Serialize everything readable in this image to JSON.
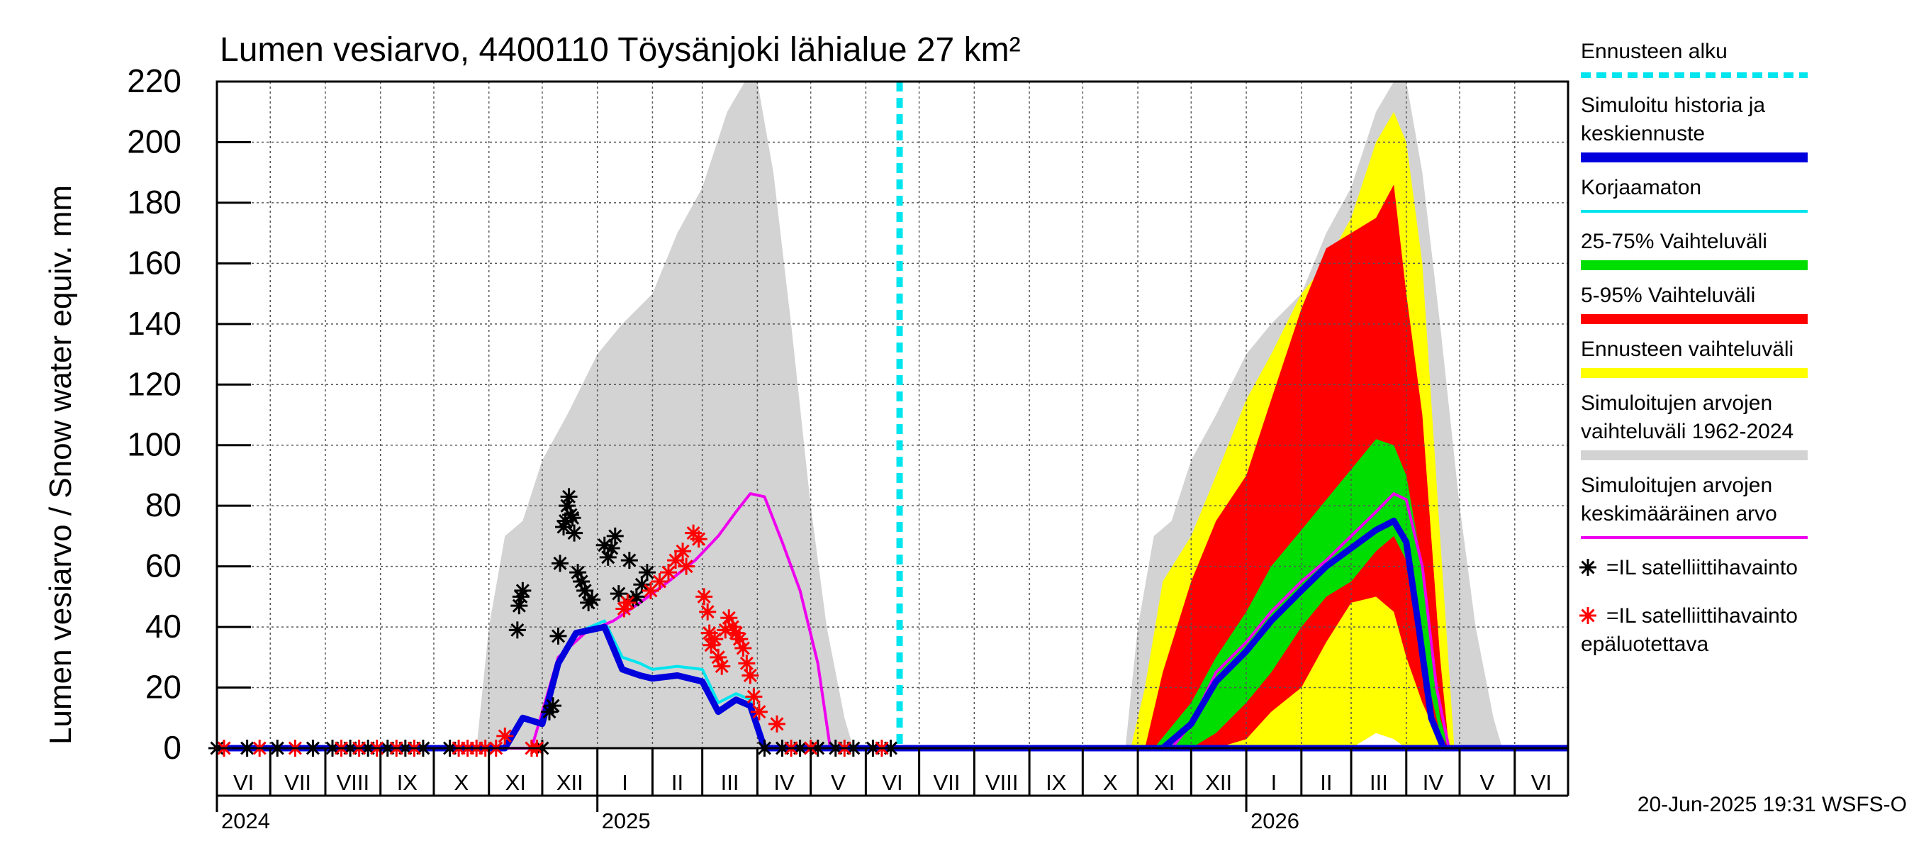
{
  "chart_data": {
    "type": "area",
    "title": "Lumen vesiarvo, 4400110 Töysänjoki lähialue 27 km²",
    "ylabel": "Lumen vesiarvo / Snow water equiv.    mm",
    "ylim": [
      0,
      220
    ],
    "yticks": [
      0,
      20,
      40,
      60,
      80,
      100,
      120,
      140,
      160,
      180,
      200,
      220
    ],
    "x_range": [
      "2024-06-01",
      "2026-07-01"
    ],
    "forecast_start": "2025-06-20",
    "month_labels": [
      {
        "label": "VI",
        "start": "2024-06-01",
        "end": "2024-07-01"
      },
      {
        "label": "VII",
        "start": "2024-07-01",
        "end": "2024-08-01"
      },
      {
        "label": "VIII",
        "start": "2024-08-01",
        "end": "2024-09-01"
      },
      {
        "label": "IX",
        "start": "2024-09-01",
        "end": "2024-10-01"
      },
      {
        "label": "X",
        "start": "2024-10-01",
        "end": "2024-11-01"
      },
      {
        "label": "XI",
        "start": "2024-11-01",
        "end": "2024-12-01"
      },
      {
        "label": "XII",
        "start": "2024-12-01",
        "end": "2025-01-01"
      },
      {
        "label": "I",
        "start": "2025-01-01",
        "end": "2025-02-01"
      },
      {
        "label": "II",
        "start": "2025-02-01",
        "end": "2025-03-01"
      },
      {
        "label": "III",
        "start": "2025-03-01",
        "end": "2025-04-01"
      },
      {
        "label": "IV",
        "start": "2025-04-01",
        "end": "2025-05-01"
      },
      {
        "label": "V",
        "start": "2025-05-01",
        "end": "2025-06-01"
      },
      {
        "label": "VI",
        "start": "2025-06-01",
        "end": "2025-07-01"
      },
      {
        "label": "VII",
        "start": "2025-07-01",
        "end": "2025-08-01"
      },
      {
        "label": "VIII",
        "start": "2025-08-01",
        "end": "2025-09-01"
      },
      {
        "label": "IX",
        "start": "2025-09-01",
        "end": "2025-10-01"
      },
      {
        "label": "X",
        "start": "2025-10-01",
        "end": "2025-11-01"
      },
      {
        "label": "XI",
        "start": "2025-11-01",
        "end": "2025-12-01"
      },
      {
        "label": "XII",
        "start": "2025-12-01",
        "end": "2026-01-01"
      },
      {
        "label": "I",
        "start": "2026-01-01",
        "end": "2026-02-01"
      },
      {
        "label": "II",
        "start": "2026-02-01",
        "end": "2026-03-01"
      },
      {
        "label": "III",
        "start": "2026-03-01",
        "end": "2026-04-01"
      },
      {
        "label": "IV",
        "start": "2026-04-01",
        "end": "2026-05-01"
      },
      {
        "label": "V",
        "start": "2026-05-01",
        "end": "2026-06-01"
      },
      {
        "label": "VI",
        "start": "2026-06-01",
        "end": "2026-07-01"
      }
    ],
    "year_labels": [
      {
        "label": "2024",
        "date": "2024-06-01"
      },
      {
        "label": "2025",
        "date": "2025-01-01"
      },
      {
        "label": "2026",
        "date": "2026-01-01"
      }
    ],
    "legend": [
      {
        "label": "Ennusteen alku",
        "color": "#00e5ee",
        "style": "dashed"
      },
      {
        "label": "Simuloitu historia ja\nkeskiennuste",
        "color": "#0000dd",
        "style": "thick"
      },
      {
        "label": "Korjaamaton",
        "color": "#00e5ee",
        "style": "line"
      },
      {
        "label": "25-75% Vaihteluväli",
        "color": "#00dd00",
        "style": "band"
      },
      {
        "label": "5-95% Vaihteluväli",
        "color": "#ff0000",
        "style": "band"
      },
      {
        "label": "Ennusteen vaihteluväli",
        "color": "#ffff00",
        "style": "band"
      },
      {
        "label": "Simuloitujen arvojen\nvaihteluväli 1962-2024",
        "color": "#d3d3d3",
        "style": "band"
      },
      {
        "label": "Simuloitujen arvojen\nkeskimääräinen arvo",
        "color": "#ee00ee",
        "style": "line"
      },
      {
        "label": "=IL satelliittihavainto",
        "color": "#000000",
        "style": "marker"
      },
      {
        "label": "=IL satelliittihavainto\nepäluotettava",
        "color": "#ff0000",
        "style": "marker"
      }
    ],
    "footer": "20-Jun-2025 19:31 WSFS-O",
    "series": [
      {
        "name": "hist_range",
        "kind": "band",
        "color": "#d3d3d3",
        "x": [
          "2024-10-25",
          "2024-11-01",
          "2024-11-10",
          "2024-11-20",
          "2024-12-01",
          "2024-12-15",
          "2025-01-01",
          "2025-01-15",
          "2025-02-01",
          "2025-02-15",
          "2025-03-01",
          "2025-03-15",
          "2025-03-25",
          "2025-04-01",
          "2025-04-10",
          "2025-04-20",
          "2025-05-01",
          "2025-05-10",
          "2025-05-20",
          "2025-05-25"
        ],
        "lo": [
          0,
          0,
          0,
          0,
          0,
          0,
          0,
          0,
          0,
          0,
          0,
          0,
          0,
          0,
          0,
          0,
          0,
          0,
          0,
          0
        ],
        "hi": [
          0,
          40,
          70,
          75,
          95,
          110,
          130,
          140,
          150,
          170,
          185,
          210,
          220,
          220,
          190,
          140,
          80,
          40,
          10,
          0
        ]
      },
      {
        "name": "hist_range",
        "kind": "band",
        "color": "#d3d3d3",
        "x": [
          "2025-10-25",
          "2025-11-01",
          "2025-11-10",
          "2025-11-20",
          "2025-12-01",
          "2025-12-15",
          "2026-01-01",
          "2026-01-15",
          "2026-02-01",
          "2026-02-15",
          "2026-03-01",
          "2026-03-15",
          "2026-03-25",
          "2026-04-01",
          "2026-04-10",
          "2026-04-20",
          "2026-05-01",
          "2026-05-10",
          "2026-05-20",
          "2026-05-25"
        ],
        "lo": [
          0,
          0,
          0,
          0,
          0,
          0,
          0,
          0,
          0,
          0,
          0,
          5,
          8,
          5,
          2,
          0,
          0,
          0,
          0,
          0
        ],
        "hi": [
          0,
          40,
          70,
          75,
          95,
          110,
          130,
          140,
          150,
          170,
          185,
          210,
          220,
          220,
          190,
          140,
          80,
          40,
          10,
          0
        ]
      },
      {
        "name": "forecast_range",
        "kind": "band",
        "color": "#ffff00",
        "x": [
          "2025-10-28",
          "2025-11-05",
          "2025-11-15",
          "2025-12-01",
          "2025-12-15",
          "2026-01-01",
          "2026-01-15",
          "2026-02-01",
          "2026-02-15",
          "2026-03-01",
          "2026-03-15",
          "2026-03-25",
          "2026-04-01",
          "2026-04-10",
          "2026-04-20",
          "2026-04-28"
        ],
        "lo": [
          0,
          0,
          0,
          0,
          0,
          0,
          0,
          0,
          0,
          0,
          5,
          3,
          0,
          0,
          0,
          0
        ],
        "hi": [
          0,
          20,
          55,
          70,
          90,
          115,
          130,
          150,
          160,
          175,
          200,
          210,
          200,
          160,
          70,
          0
        ]
      },
      {
        "name": "p5_95",
        "kind": "band",
        "color": "#ff0000",
        "x": [
          "2025-11-05",
          "2025-11-15",
          "2025-12-01",
          "2025-12-15",
          "2026-01-01",
          "2026-01-15",
          "2026-02-01",
          "2026-02-15",
          "2026-03-01",
          "2026-03-15",
          "2026-03-25",
          "2026-04-01",
          "2026-04-10",
          "2026-04-20",
          "2026-04-25"
        ],
        "lo": [
          0,
          0,
          0,
          0,
          3,
          12,
          20,
          35,
          48,
          50,
          45,
          30,
          15,
          2,
          0
        ],
        "hi": [
          0,
          25,
          55,
          75,
          90,
          115,
          145,
          165,
          170,
          175,
          186,
          150,
          110,
          30,
          0
        ]
      },
      {
        "name": "p25_75",
        "kind": "band",
        "color": "#00dd00",
        "x": [
          "2025-11-10",
          "2025-12-01",
          "2025-12-15",
          "2026-01-01",
          "2026-01-15",
          "2026-02-01",
          "2026-02-15",
          "2026-03-01",
          "2026-03-15",
          "2026-03-25",
          "2026-04-01",
          "2026-04-10",
          "2026-04-20",
          "2026-04-25"
        ],
        "lo": [
          0,
          0,
          5,
          15,
          25,
          40,
          50,
          55,
          65,
          70,
          62,
          30,
          5,
          0
        ],
        "hi": [
          0,
          15,
          30,
          45,
          60,
          72,
          82,
          92,
          102,
          100,
          90,
          60,
          10,
          0
        ]
      },
      {
        "name": "uncorrected",
        "kind": "line",
        "color": "#00e5ee",
        "width": 4,
        "x": [
          "2024-06-01",
          "2024-11-10",
          "2024-11-20",
          "2024-12-01",
          "2024-12-10",
          "2024-12-20",
          "2025-01-05",
          "2025-01-15",
          "2025-01-25",
          "2025-02-01",
          "2025-02-15",
          "2025-03-01",
          "2025-03-10",
          "2025-03-20",
          "2025-03-28",
          "2025-04-05",
          "2025-04-15",
          "2025-06-20"
        ],
        "y": [
          0,
          0,
          10,
          8,
          28,
          38,
          42,
          30,
          28,
          26,
          27,
          26,
          15,
          18,
          16,
          0,
          0,
          0
        ]
      },
      {
        "name": "mean_history",
        "kind": "line",
        "color": "#ee00ee",
        "width": 4,
        "x": [
          "2024-06-01",
          "2024-11-25",
          "2024-12-10",
          "2024-12-25",
          "2025-01-10",
          "2025-01-25",
          "2025-02-10",
          "2025-02-25",
          "2025-03-10",
          "2025-03-20",
          "2025-03-28",
          "2025-04-05",
          "2025-04-15",
          "2025-04-25",
          "2025-05-05",
          "2025-05-12",
          "2026-07-01"
        ],
        "y": [
          0,
          0,
          30,
          38,
          42,
          48,
          55,
          62,
          70,
          78,
          84,
          83,
          68,
          52,
          28,
          0,
          0
        ]
      },
      {
        "name": "mean_forecast",
        "kind": "line",
        "color": "#ee00ee",
        "width": 4,
        "x": [
          "2025-11-20",
          "2025-12-01",
          "2025-12-15",
          "2026-01-01",
          "2026-01-15",
          "2026-02-01",
          "2026-02-15",
          "2026-03-01",
          "2026-03-15",
          "2026-03-25",
          "2026-04-01",
          "2026-04-10",
          "2026-04-18",
          "2026-04-25"
        ],
        "y": [
          0,
          8,
          25,
          35,
          45,
          55,
          62,
          70,
          78,
          84,
          82,
          60,
          20,
          0
        ]
      },
      {
        "name": "simulated",
        "kind": "line",
        "color": "#0000dd",
        "width": 9,
        "x": [
          "2024-06-01",
          "2024-11-10",
          "2024-11-20",
          "2024-12-01",
          "2024-12-10",
          "2024-12-20",
          "2025-01-05",
          "2025-01-15",
          "2025-01-25",
          "2025-02-01",
          "2025-02-15",
          "2025-03-01",
          "2025-03-10",
          "2025-03-20",
          "2025-03-28",
          "2025-04-05",
          "2025-04-15",
          "2026-07-01"
        ],
        "y": [
          0,
          0,
          10,
          8,
          28,
          38,
          40,
          26,
          24,
          23,
          24,
          22,
          12,
          16,
          14,
          0,
          0,
          0
        ]
      },
      {
        "name": "forecast_median",
        "kind": "line",
        "color": "#0000dd",
        "width": 9,
        "x": [
          "2025-11-15",
          "2025-12-01",
          "2025-12-15",
          "2026-01-01",
          "2026-01-15",
          "2026-02-01",
          "2026-02-15",
          "2026-03-01",
          "2026-03-15",
          "2026-03-25",
          "2026-04-01",
          "2026-04-08",
          "2026-04-15",
          "2026-04-22"
        ],
        "y": [
          0,
          8,
          22,
          32,
          42,
          52,
          60,
          66,
          72,
          75,
          68,
          40,
          10,
          0
        ]
      }
    ],
    "obs_good": [
      {
        "x": "2024-06-01",
        "y": 0
      },
      {
        "x": "2024-06-18",
        "y": 0
      },
      {
        "x": "2024-07-05",
        "y": 0
      },
      {
        "x": "2024-07-25",
        "y": 0
      },
      {
        "x": "2024-08-05",
        "y": 0
      },
      {
        "x": "2024-08-15",
        "y": 0
      },
      {
        "x": "2024-08-25",
        "y": 0
      },
      {
        "x": "2024-09-05",
        "y": 0
      },
      {
        "x": "2024-09-15",
        "y": 0
      },
      {
        "x": "2024-09-25",
        "y": 0
      },
      {
        "x": "2024-10-10",
        "y": 0
      },
      {
        "x": "2024-11-17",
        "y": 39
      },
      {
        "x": "2024-11-18",
        "y": 47
      },
      {
        "x": "2024-11-19",
        "y": 50
      },
      {
        "x": "2024-11-20",
        "y": 52
      },
      {
        "x": "2024-12-01",
        "y": 0
      },
      {
        "x": "2024-12-05",
        "y": 12
      },
      {
        "x": "2024-12-07",
        "y": 14
      },
      {
        "x": "2024-12-10",
        "y": 37
      },
      {
        "x": "2024-12-11",
        "y": 61
      },
      {
        "x": "2024-12-13",
        "y": 73
      },
      {
        "x": "2024-12-14",
        "y": 75
      },
      {
        "x": "2024-12-15",
        "y": 80
      },
      {
        "x": "2024-12-16",
        "y": 83
      },
      {
        "x": "2024-12-17",
        "y": 77
      },
      {
        "x": "2024-12-18",
        "y": 76
      },
      {
        "x": "2024-12-19",
        "y": 71
      },
      {
        "x": "2024-12-21",
        "y": 58
      },
      {
        "x": "2024-12-23",
        "y": 55
      },
      {
        "x": "2024-12-25",
        "y": 52
      },
      {
        "x": "2024-12-27",
        "y": 48
      },
      {
        "x": "2024-12-29",
        "y": 49
      },
      {
        "x": "2025-01-05",
        "y": 67
      },
      {
        "x": "2025-01-07",
        "y": 63
      },
      {
        "x": "2025-01-09",
        "y": 66
      },
      {
        "x": "2025-01-11",
        "y": 70
      },
      {
        "x": "2025-01-13",
        "y": 51
      },
      {
        "x": "2025-01-19",
        "y": 62
      },
      {
        "x": "2025-01-21",
        "y": 49
      },
      {
        "x": "2025-01-23",
        "y": 50
      },
      {
        "x": "2025-01-26",
        "y": 54
      },
      {
        "x": "2025-01-29",
        "y": 58
      },
      {
        "x": "2025-04-05",
        "y": 0
      },
      {
        "x": "2025-04-15",
        "y": 0
      },
      {
        "x": "2025-04-25",
        "y": 0
      },
      {
        "x": "2025-05-05",
        "y": 0
      },
      {
        "x": "2025-05-15",
        "y": 0
      },
      {
        "x": "2025-05-25",
        "y": 0
      },
      {
        "x": "2025-06-05",
        "y": 0
      },
      {
        "x": "2025-06-15",
        "y": 0
      }
    ],
    "obs_bad": [
      {
        "x": "2024-06-05",
        "y": 0
      },
      {
        "x": "2024-06-25",
        "y": 0
      },
      {
        "x": "2024-07-15",
        "y": 0
      },
      {
        "x": "2024-08-10",
        "y": 0
      },
      {
        "x": "2024-08-20",
        "y": 0
      },
      {
        "x": "2024-08-30",
        "y": 0
      },
      {
        "x": "2024-09-10",
        "y": 0
      },
      {
        "x": "2024-09-20",
        "y": 0
      },
      {
        "x": "2024-10-15",
        "y": 0
      },
      {
        "x": "2024-10-20",
        "y": 0
      },
      {
        "x": "2024-10-25",
        "y": 0
      },
      {
        "x": "2024-10-30",
        "y": 0
      },
      {
        "x": "2024-11-05",
        "y": 0
      },
      {
        "x": "2024-11-10",
        "y": 4
      },
      {
        "x": "2024-11-25",
        "y": 0
      },
      {
        "x": "2024-11-28",
        "y": 0
      },
      {
        "x": "2025-01-16",
        "y": 46
      },
      {
        "x": "2025-01-18",
        "y": 48
      },
      {
        "x": "2025-01-31",
        "y": 52
      },
      {
        "x": "2025-02-05",
        "y": 55
      },
      {
        "x": "2025-02-10",
        "y": 58
      },
      {
        "x": "2025-02-14",
        "y": 62
      },
      {
        "x": "2025-02-18",
        "y": 65
      },
      {
        "x": "2025-02-20",
        "y": 60
      },
      {
        "x": "2025-02-24",
        "y": 71
      },
      {
        "x": "2025-02-27",
        "y": 69
      },
      {
        "x": "2025-03-02",
        "y": 50
      },
      {
        "x": "2025-03-04",
        "y": 45
      },
      {
        "x": "2025-03-05",
        "y": 38
      },
      {
        "x": "2025-03-06",
        "y": 34
      },
      {
        "x": "2025-03-08",
        "y": 36
      },
      {
        "x": "2025-03-10",
        "y": 30
      },
      {
        "x": "2025-03-12",
        "y": 27
      },
      {
        "x": "2025-03-14",
        "y": 39
      },
      {
        "x": "2025-03-16",
        "y": 43
      },
      {
        "x": "2025-03-18",
        "y": 40
      },
      {
        "x": "2025-03-20",
        "y": 38
      },
      {
        "x": "2025-03-22",
        "y": 36
      },
      {
        "x": "2025-03-24",
        "y": 33
      },
      {
        "x": "2025-03-26",
        "y": 28
      },
      {
        "x": "2025-03-28",
        "y": 24
      },
      {
        "x": "2025-03-30",
        "y": 17
      },
      {
        "x": "2025-04-02",
        "y": 12
      },
      {
        "x": "2025-04-12",
        "y": 8
      },
      {
        "x": "2025-04-20",
        "y": 0
      },
      {
        "x": "2025-05-01",
        "y": 0
      },
      {
        "x": "2025-05-20",
        "y": 0
      },
      {
        "x": "2025-06-10",
        "y": 0
      }
    ]
  }
}
